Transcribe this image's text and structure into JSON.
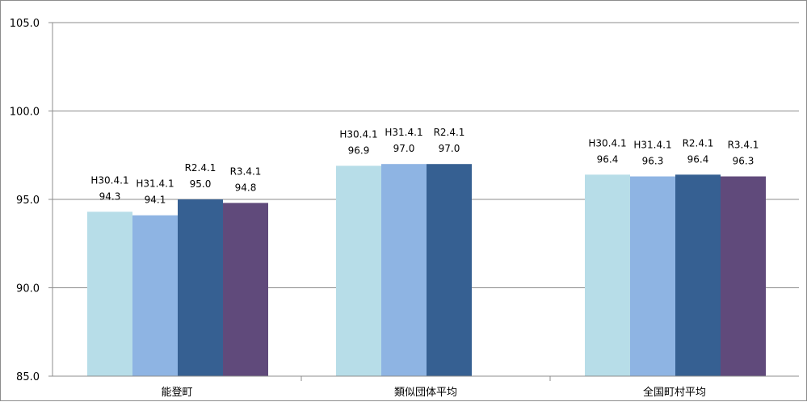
{
  "chart_data": {
    "type": "bar",
    "ylim": [
      85.0,
      105.0
    ],
    "yticks": [
      "85.0",
      "90.0",
      "95.0",
      "100.0",
      "105.0"
    ],
    "grid": true,
    "categories": [
      "能登町",
      "類似団体平均",
      "全国町村平均"
    ],
    "series": [
      {
        "name": "H30.4.1",
        "color": "#b7dde8",
        "values": [
          94.3,
          96.9,
          96.4
        ]
      },
      {
        "name": "H31.4.1",
        "color": "#8eb4e3",
        "values": [
          94.1,
          97.0,
          96.3
        ]
      },
      {
        "name": "R2.4.1",
        "color": "#366092",
        "values": [
          95.0,
          97.0,
          96.4
        ]
      },
      {
        "name": "R3.4.1",
        "color": "#604a7b",
        "values": [
          94.8,
          null,
          96.3
        ]
      }
    ],
    "labels": [
      [
        [
          "H30.4.1",
          "94.3"
        ],
        [
          "H31.4.1",
          "94.1"
        ],
        [
          "R2.4.1",
          "95.0"
        ],
        [
          "R3.4.1",
          "94.8"
        ]
      ],
      [
        [
          "H30.4.1",
          "96.9"
        ],
        [
          "H31.4.1",
          "97.0"
        ],
        [
          "R2.4.1",
          "97.0"
        ],
        null
      ],
      [
        [
          "H30.4.1",
          "96.4"
        ],
        [
          "H31.4.1",
          "96.3"
        ],
        [
          "R2.4.1",
          "96.4"
        ],
        [
          "R3.4.1",
          "96.3"
        ]
      ]
    ]
  }
}
